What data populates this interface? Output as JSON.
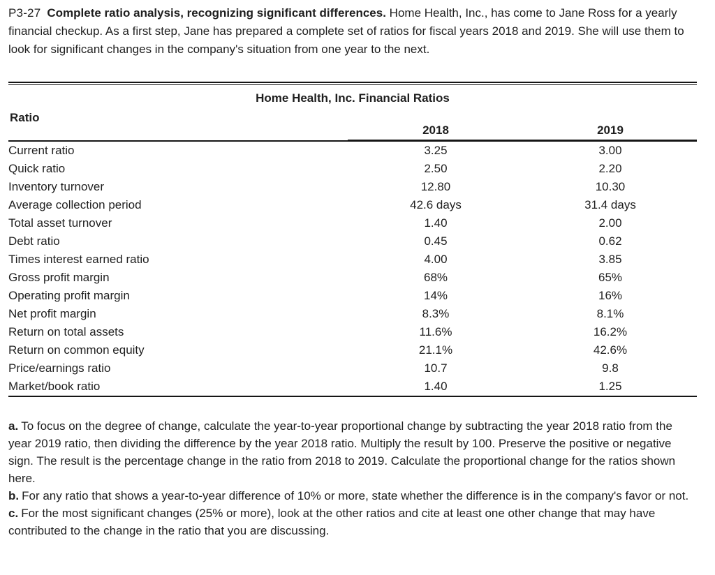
{
  "problem": {
    "number": "P3-27",
    "title": "Complete ratio analysis, recognizing significant differences.",
    "intro": "Home Health, Inc., has come to Jane Ross for a yearly financial checkup. As a first step, Jane has prepared a complete set of ratios for fiscal years 2018 and 2019.  She will use them to look for significant changes in the company's situation from one year to the next."
  },
  "table": {
    "title": "Home Health, Inc. Financial Ratios",
    "columns": [
      "Ratio",
      "2018",
      "2019"
    ],
    "rows": [
      [
        "Current ratio",
        "3.25",
        "3.00"
      ],
      [
        "Quick ratio",
        "2.50",
        "2.20"
      ],
      [
        "Inventory turnover",
        "12.80",
        "10.30"
      ],
      [
        "Average collection period",
        "42.6 days",
        "31.4 days"
      ],
      [
        "Total asset turnover",
        "1.40",
        "2.00"
      ],
      [
        "Debt ratio",
        "0.45",
        "0.62"
      ],
      [
        "Times interest earned ratio",
        "4.00",
        "3.85"
      ],
      [
        "Gross profit margin",
        "68%",
        "65%"
      ],
      [
        "Operating profit margin",
        "14%",
        "16%"
      ],
      [
        "Net profit margin",
        "8.3%",
        "8.1%"
      ],
      [
        "Return on total assets",
        "11.6%",
        "16.2%"
      ],
      [
        "Return on common equity",
        "21.1%",
        "42.6%"
      ],
      [
        "Price/earnings ratio",
        "10.7",
        "9.8"
      ],
      [
        "Market/book ratio",
        "1.40",
        "1.25"
      ]
    ]
  },
  "questions": [
    {
      "label": "a.",
      "text": "To focus on the degree of change, calculate the year-to-year proportional change by subtracting the year 2018 ratio from the year 2019 ratio, then dividing the difference by the year 2018 ratio. Multiply the result by 100. Preserve the positive or negative sign. The result is the percentage change in the ratio from 2018 to 2019. Calculate the proportional change for the ratios shown here."
    },
    {
      "label": "b.",
      "text": "For any ratio that shows a year-to-year difference of 10% or more, state whether the difference is in the company's favor or not."
    },
    {
      "label": "c.",
      "text": "For the most significant changes (25% or more), look at the other ratios and cite at least one other change that may have contributed to the change in the ratio that you are discussing."
    }
  ],
  "colors": {
    "background": "#ffffff",
    "text": "#1f1f1f",
    "rule": "#151515"
  }
}
